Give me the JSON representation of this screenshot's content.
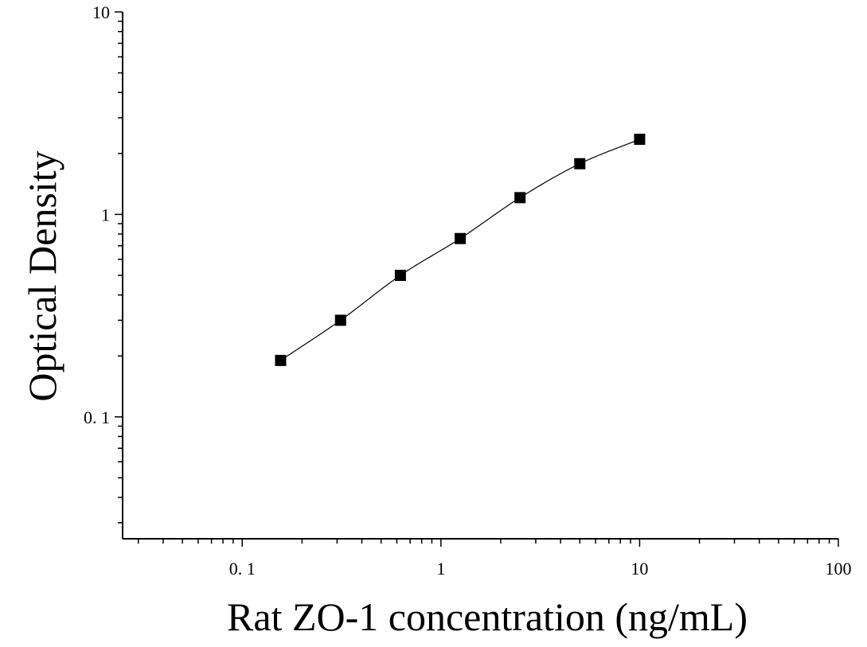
{
  "chart_data": {
    "type": "scatter",
    "title": "",
    "xlabel": "Rat ZO-1 concentration (ng/mL)",
    "ylabel": "Optical Density",
    "x_scale": "log",
    "y_scale": "log",
    "xlim": [
      0.025,
      100
    ],
    "ylim": [
      0.025,
      10
    ],
    "x_ticks": [
      {
        "value": 0.1,
        "label": "0. 1"
      },
      {
        "value": 1,
        "label": "1"
      },
      {
        "value": 10,
        "label": "10"
      },
      {
        "value": 100,
        "label": "100"
      }
    ],
    "y_ticks": [
      {
        "value": 0.1,
        "label": "0. 1"
      },
      {
        "value": 1,
        "label": "1"
      },
      {
        "value": 10,
        "label": "10"
      }
    ],
    "grid": false,
    "legend": "none",
    "marker_color": "#000000",
    "curve_color": "#000000",
    "series": [
      {
        "marker": "square",
        "x": [
          0.156,
          0.3125,
          0.625,
          1.25,
          2.5,
          5,
          10
        ],
        "values": [
          0.19,
          0.3,
          0.5,
          0.76,
          1.21,
          1.78,
          2.35
        ]
      }
    ],
    "fit_curve": {
      "type": "smooth",
      "x": [
        0.156,
        0.3125,
        0.625,
        1.25,
        2.5,
        5,
        10
      ],
      "values": [
        0.19,
        0.3,
        0.5,
        0.76,
        1.21,
        1.78,
        2.35
      ]
    }
  }
}
